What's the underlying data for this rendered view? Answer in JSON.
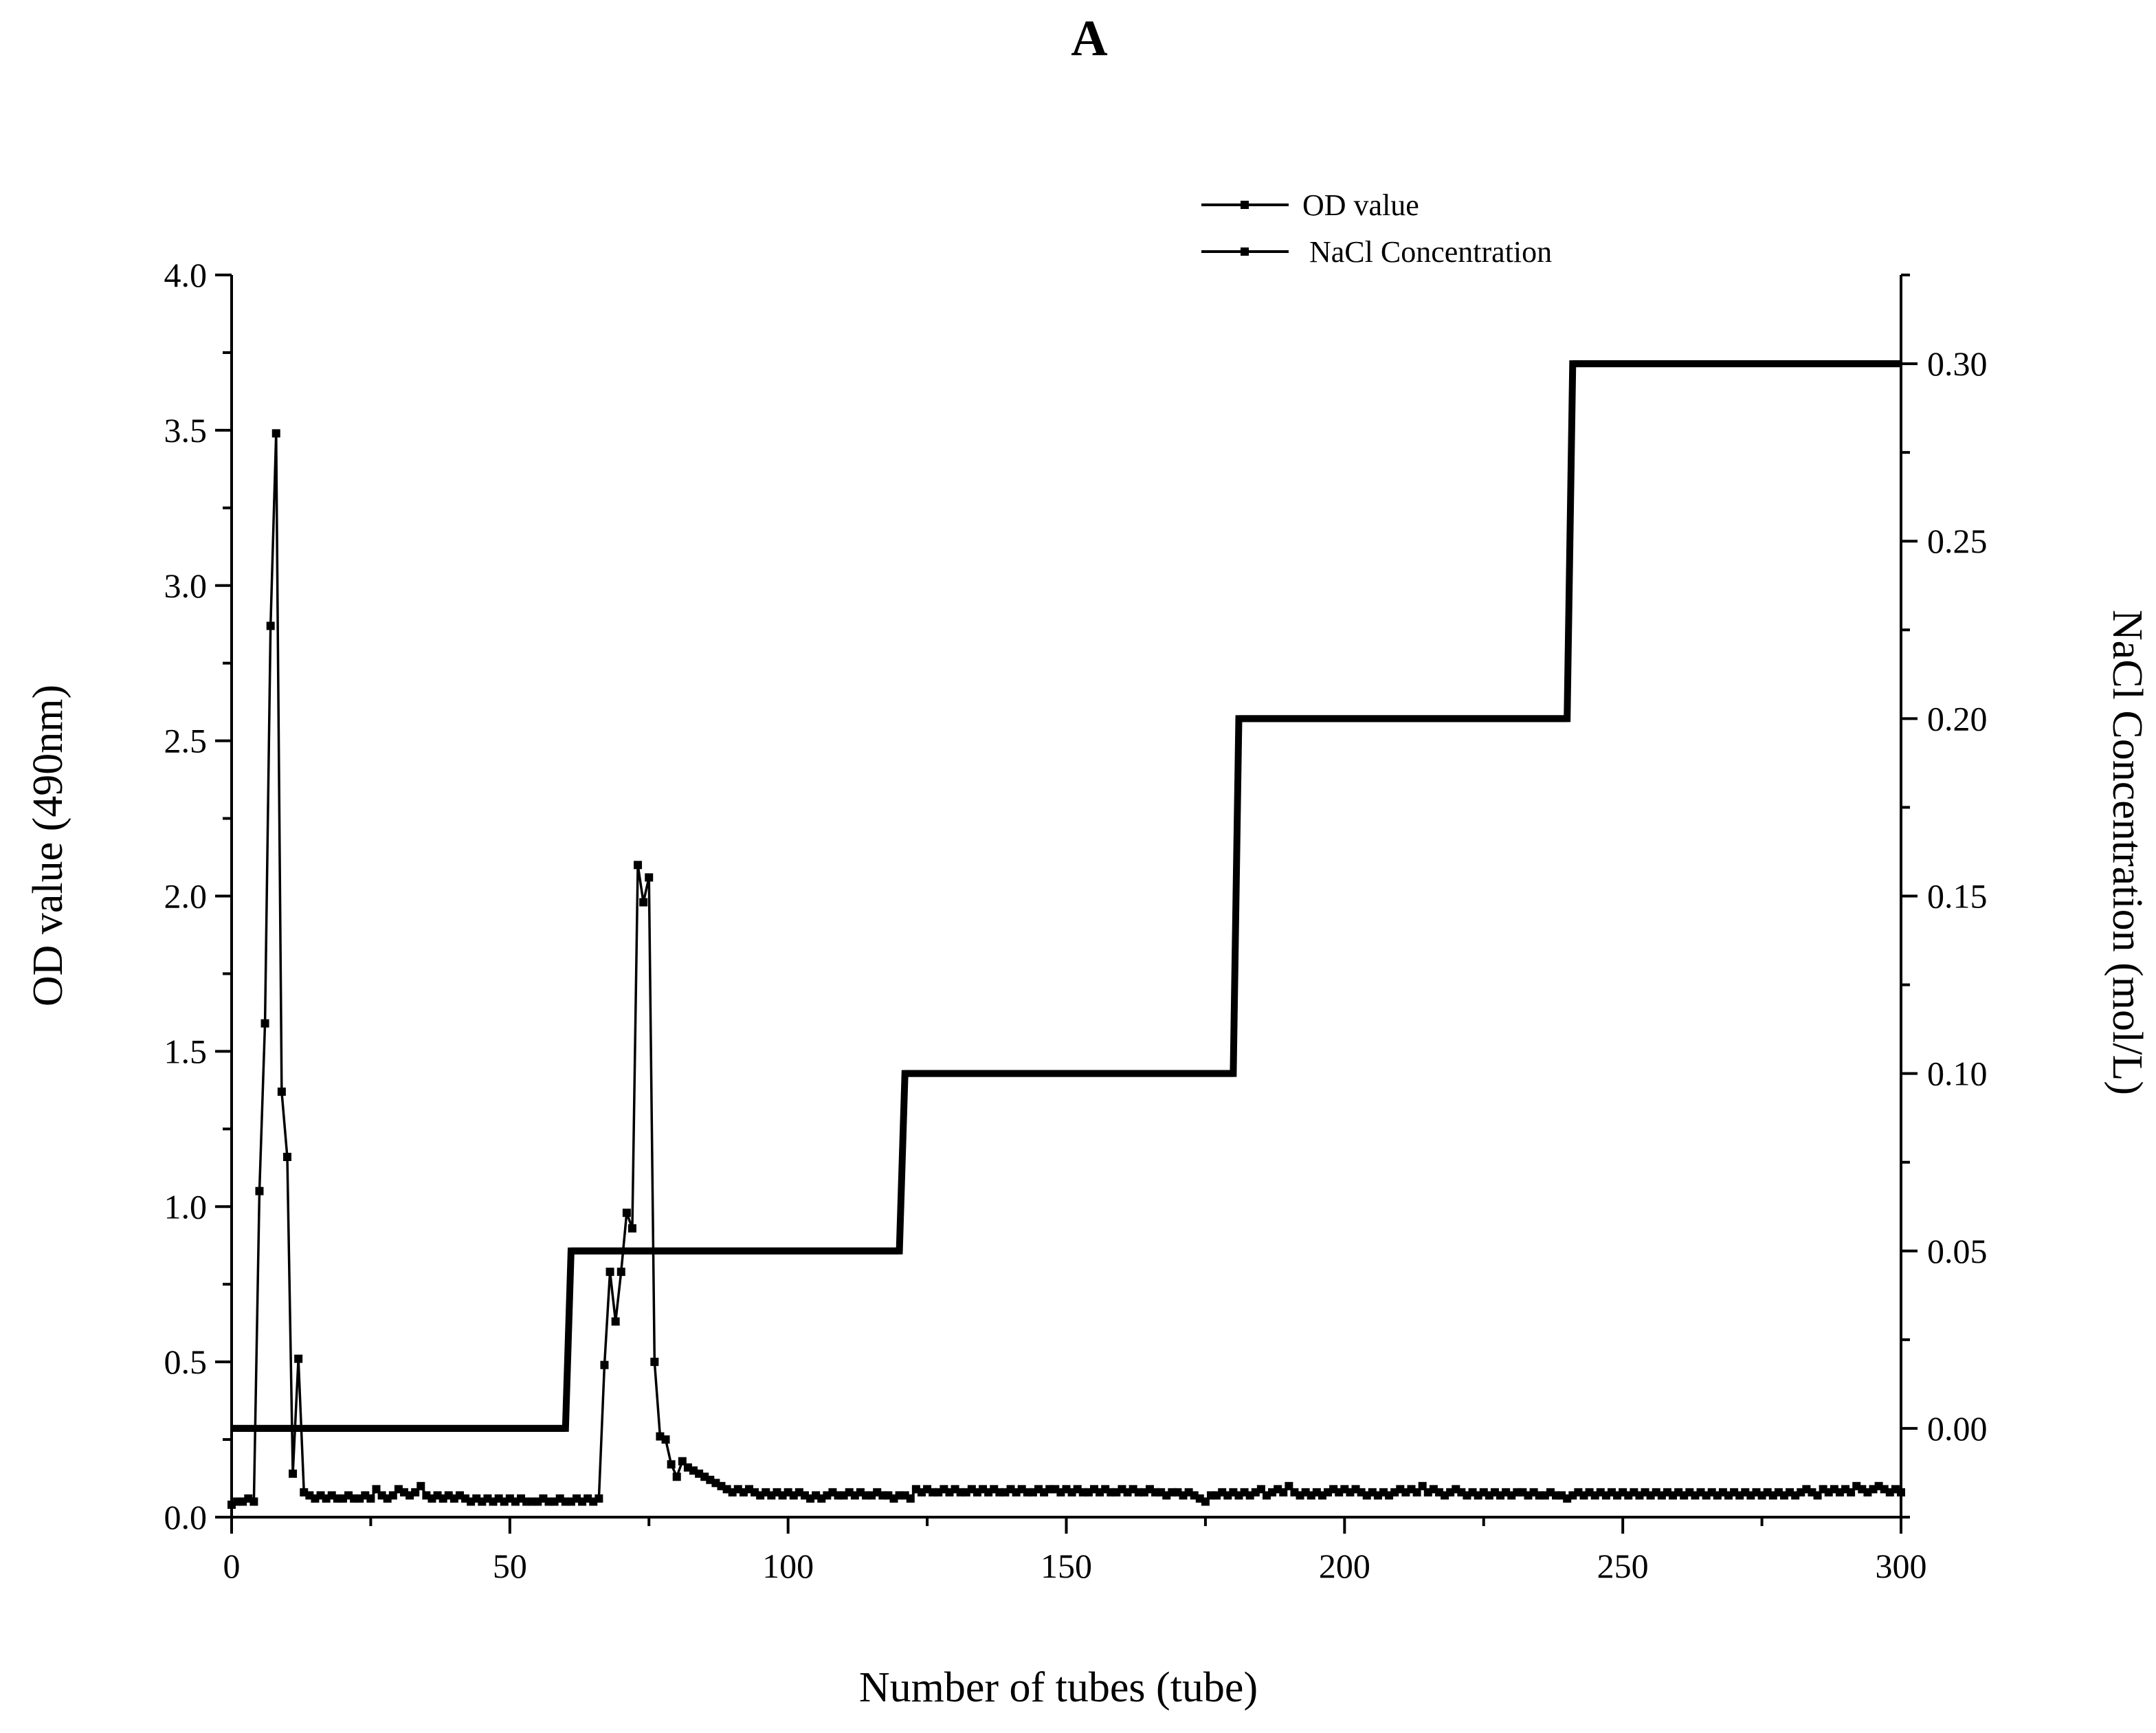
{
  "chart_data": {
    "type": "line",
    "title": "A",
    "xlabel": "Number of tubes (tube)",
    "ylabel": "OD value (490nm)",
    "y2label": "NaCl Concentration (mol/L)",
    "xlim": [
      0,
      300
    ],
    "ylim": [
      0,
      4.0
    ],
    "y2lim": [
      -0.025,
      0.325
    ],
    "grid": false,
    "legend_position": "top-center",
    "x_ticks": [
      "0",
      "50",
      "100",
      "150",
      "200",
      "250",
      "300"
    ],
    "y_ticks": [
      "0.0",
      "0.5",
      "1.0",
      "1.5",
      "2.0",
      "2.5",
      "3.0",
      "3.5",
      "4.0"
    ],
    "y2_ticks": [
      "0.00",
      "0.05",
      "0.10",
      "0.15",
      "0.20",
      "0.25",
      "0.30"
    ],
    "series": [
      {
        "name": "OD value",
        "axis": "left",
        "color": "#000000",
        "points": [
          [
            0,
            0.04
          ],
          [
            1,
            0.05
          ],
          [
            2,
            0.05
          ],
          [
            3,
            0.06
          ],
          [
            4,
            0.05
          ],
          [
            5,
            1.05
          ],
          [
            6,
            1.59
          ],
          [
            7,
            2.87
          ],
          [
            8,
            3.49
          ],
          [
            9,
            1.37
          ],
          [
            10,
            1.16
          ],
          [
            11,
            0.14
          ],
          [
            12,
            0.51
          ],
          [
            13,
            0.08
          ],
          [
            14,
            0.07
          ],
          [
            15,
            0.06
          ],
          [
            16,
            0.07
          ],
          [
            17,
            0.06
          ],
          [
            18,
            0.07
          ],
          [
            19,
            0.06
          ],
          [
            20,
            0.06
          ],
          [
            21,
            0.07
          ],
          [
            22,
            0.06
          ],
          [
            23,
            0.06
          ],
          [
            24,
            0.07
          ],
          [
            25,
            0.06
          ],
          [
            26,
            0.09
          ],
          [
            27,
            0.07
          ],
          [
            28,
            0.06
          ],
          [
            29,
            0.07
          ],
          [
            30,
            0.09
          ],
          [
            31,
            0.08
          ],
          [
            32,
            0.07
          ],
          [
            33,
            0.08
          ],
          [
            34,
            0.1
          ],
          [
            35,
            0.07
          ],
          [
            36,
            0.06
          ],
          [
            37,
            0.07
          ],
          [
            38,
            0.06
          ],
          [
            39,
            0.07
          ],
          [
            40,
            0.06
          ],
          [
            41,
            0.07
          ],
          [
            42,
            0.06
          ],
          [
            43,
            0.05
          ],
          [
            44,
            0.06
          ],
          [
            45,
            0.05
          ],
          [
            46,
            0.06
          ],
          [
            47,
            0.05
          ],
          [
            48,
            0.06
          ],
          [
            49,
            0.05
          ],
          [
            50,
            0.06
          ],
          [
            51,
            0.05
          ],
          [
            52,
            0.06
          ],
          [
            53,
            0.05
          ],
          [
            54,
            0.05
          ],
          [
            55,
            0.05
          ],
          [
            56,
            0.06
          ],
          [
            57,
            0.05
          ],
          [
            58,
            0.05
          ],
          [
            59,
            0.06
          ],
          [
            60,
            0.05
          ],
          [
            61,
            0.05
          ],
          [
            62,
            0.06
          ],
          [
            63,
            0.05
          ],
          [
            64,
            0.06
          ],
          [
            65,
            0.05
          ],
          [
            66,
            0.06
          ],
          [
            67,
            0.49
          ],
          [
            68,
            0.79
          ],
          [
            69,
            0.63
          ],
          [
            70,
            0.79
          ],
          [
            71,
            0.98
          ],
          [
            72,
            0.93
          ],
          [
            73,
            2.1
          ],
          [
            74,
            1.98
          ],
          [
            75,
            2.06
          ],
          [
            76,
            0.5
          ],
          [
            77,
            0.26
          ],
          [
            78,
            0.25
          ],
          [
            79,
            0.17
          ],
          [
            80,
            0.13
          ],
          [
            81,
            0.18
          ],
          [
            82,
            0.16
          ],
          [
            83,
            0.15
          ],
          [
            84,
            0.14
          ],
          [
            85,
            0.13
          ],
          [
            86,
            0.12
          ],
          [
            87,
            0.11
          ],
          [
            88,
            0.1
          ],
          [
            89,
            0.09
          ],
          [
            90,
            0.08
          ],
          [
            91,
            0.09
          ],
          [
            92,
            0.08
          ],
          [
            93,
            0.09
          ],
          [
            94,
            0.08
          ],
          [
            95,
            0.07
          ],
          [
            96,
            0.08
          ],
          [
            97,
            0.07
          ],
          [
            98,
            0.08
          ],
          [
            99,
            0.07
          ],
          [
            100,
            0.08
          ],
          [
            101,
            0.07
          ],
          [
            102,
            0.08
          ],
          [
            103,
            0.07
          ],
          [
            104,
            0.06
          ],
          [
            105,
            0.07
          ],
          [
            106,
            0.06
          ],
          [
            107,
            0.07
          ],
          [
            108,
            0.08
          ],
          [
            109,
            0.07
          ],
          [
            110,
            0.07
          ],
          [
            111,
            0.08
          ],
          [
            112,
            0.07
          ],
          [
            113,
            0.08
          ],
          [
            114,
            0.07
          ],
          [
            115,
            0.07
          ],
          [
            116,
            0.08
          ],
          [
            117,
            0.07
          ],
          [
            118,
            0.07
          ],
          [
            119,
            0.06
          ],
          [
            120,
            0.07
          ],
          [
            121,
            0.07
          ],
          [
            122,
            0.06
          ],
          [
            123,
            0.09
          ],
          [
            124,
            0.08
          ],
          [
            125,
            0.09
          ],
          [
            126,
            0.08
          ],
          [
            127,
            0.08
          ],
          [
            128,
            0.09
          ],
          [
            129,
            0.08
          ],
          [
            130,
            0.09
          ],
          [
            131,
            0.08
          ],
          [
            132,
            0.08
          ],
          [
            133,
            0.09
          ],
          [
            134,
            0.08
          ],
          [
            135,
            0.09
          ],
          [
            136,
            0.08
          ],
          [
            137,
            0.09
          ],
          [
            138,
            0.08
          ],
          [
            139,
            0.08
          ],
          [
            140,
            0.09
          ],
          [
            141,
            0.08
          ],
          [
            142,
            0.09
          ],
          [
            143,
            0.08
          ],
          [
            144,
            0.08
          ],
          [
            145,
            0.09
          ],
          [
            146,
            0.08
          ],
          [
            147,
            0.09
          ],
          [
            148,
            0.09
          ],
          [
            149,
            0.08
          ],
          [
            150,
            0.09
          ],
          [
            151,
            0.08
          ],
          [
            152,
            0.09
          ],
          [
            153,
            0.08
          ],
          [
            154,
            0.08
          ],
          [
            155,
            0.09
          ],
          [
            156,
            0.08
          ],
          [
            157,
            0.09
          ],
          [
            158,
            0.08
          ],
          [
            159,
            0.08
          ],
          [
            160,
            0.09
          ],
          [
            161,
            0.08
          ],
          [
            162,
            0.09
          ],
          [
            163,
            0.08
          ],
          [
            164,
            0.08
          ],
          [
            165,
            0.09
          ],
          [
            166,
            0.08
          ],
          [
            167,
            0.08
          ],
          [
            168,
            0.07
          ],
          [
            169,
            0.08
          ],
          [
            170,
            0.08
          ],
          [
            171,
            0.07
          ],
          [
            172,
            0.08
          ],
          [
            173,
            0.07
          ],
          [
            174,
            0.06
          ],
          [
            175,
            0.05
          ],
          [
            176,
            0.07
          ],
          [
            177,
            0.07
          ],
          [
            178,
            0.08
          ],
          [
            179,
            0.07
          ],
          [
            180,
            0.08
          ],
          [
            181,
            0.07
          ],
          [
            182,
            0.08
          ],
          [
            183,
            0.07
          ],
          [
            184,
            0.08
          ],
          [
            185,
            0.09
          ],
          [
            186,
            0.07
          ],
          [
            187,
            0.08
          ],
          [
            188,
            0.09
          ],
          [
            189,
            0.08
          ],
          [
            190,
            0.1
          ],
          [
            191,
            0.08
          ],
          [
            192,
            0.07
          ],
          [
            193,
            0.08
          ],
          [
            194,
            0.07
          ],
          [
            195,
            0.08
          ],
          [
            196,
            0.07
          ],
          [
            197,
            0.08
          ],
          [
            198,
            0.09
          ],
          [
            199,
            0.08
          ],
          [
            200,
            0.09
          ],
          [
            201,
            0.08
          ],
          [
            202,
            0.09
          ],
          [
            203,
            0.08
          ],
          [
            204,
            0.07
          ],
          [
            205,
            0.08
          ],
          [
            206,
            0.07
          ],
          [
            207,
            0.08
          ],
          [
            208,
            0.07
          ],
          [
            209,
            0.08
          ],
          [
            210,
            0.09
          ],
          [
            211,
            0.08
          ],
          [
            212,
            0.09
          ],
          [
            213,
            0.08
          ],
          [
            214,
            0.1
          ],
          [
            215,
            0.08
          ],
          [
            216,
            0.09
          ],
          [
            217,
            0.08
          ],
          [
            218,
            0.07
          ],
          [
            219,
            0.08
          ],
          [
            220,
            0.09
          ],
          [
            221,
            0.08
          ],
          [
            222,
            0.07
          ],
          [
            223,
            0.08
          ],
          [
            224,
            0.07
          ],
          [
            225,
            0.08
          ],
          [
            226,
            0.07
          ],
          [
            227,
            0.08
          ],
          [
            228,
            0.07
          ],
          [
            229,
            0.08
          ],
          [
            230,
            0.07
          ],
          [
            231,
            0.08
          ],
          [
            232,
            0.08
          ],
          [
            233,
            0.07
          ],
          [
            234,
            0.08
          ],
          [
            235,
            0.07
          ],
          [
            236,
            0.07
          ],
          [
            237,
            0.08
          ],
          [
            238,
            0.07
          ],
          [
            239,
            0.07
          ],
          [
            240,
            0.06
          ],
          [
            241,
            0.07
          ],
          [
            242,
            0.08
          ],
          [
            243,
            0.07
          ],
          [
            244,
            0.08
          ],
          [
            245,
            0.07
          ],
          [
            246,
            0.08
          ],
          [
            247,
            0.07
          ],
          [
            248,
            0.08
          ],
          [
            249,
            0.07
          ],
          [
            250,
            0.08
          ],
          [
            251,
            0.07
          ],
          [
            252,
            0.08
          ],
          [
            253,
            0.07
          ],
          [
            254,
            0.08
          ],
          [
            255,
            0.07
          ],
          [
            256,
            0.08
          ],
          [
            257,
            0.07
          ],
          [
            258,
            0.08
          ],
          [
            259,
            0.07
          ],
          [
            260,
            0.08
          ],
          [
            261,
            0.07
          ],
          [
            262,
            0.08
          ],
          [
            263,
            0.07
          ],
          [
            264,
            0.08
          ],
          [
            265,
            0.07
          ],
          [
            266,
            0.08
          ],
          [
            267,
            0.07
          ],
          [
            268,
            0.08
          ],
          [
            269,
            0.07
          ],
          [
            270,
            0.08
          ],
          [
            271,
            0.07
          ],
          [
            272,
            0.08
          ],
          [
            273,
            0.07
          ],
          [
            274,
            0.08
          ],
          [
            275,
            0.07
          ],
          [
            276,
            0.08
          ],
          [
            277,
            0.07
          ],
          [
            278,
            0.08
          ],
          [
            279,
            0.07
          ],
          [
            280,
            0.08
          ],
          [
            281,
            0.07
          ],
          [
            282,
            0.08
          ],
          [
            283,
            0.09
          ],
          [
            284,
            0.08
          ],
          [
            285,
            0.07
          ],
          [
            286,
            0.09
          ],
          [
            287,
            0.08
          ],
          [
            288,
            0.09
          ],
          [
            289,
            0.08
          ],
          [
            290,
            0.09
          ],
          [
            291,
            0.08
          ],
          [
            292,
            0.1
          ],
          [
            293,
            0.09
          ],
          [
            294,
            0.08
          ],
          [
            295,
            0.09
          ],
          [
            296,
            0.1
          ],
          [
            297,
            0.09
          ],
          [
            298,
            0.08
          ],
          [
            299,
            0.09
          ],
          [
            300,
            0.08
          ]
        ]
      },
      {
        "name": "NaCl Concentration",
        "axis": "right",
        "color": "#000000",
        "points": [
          [
            0,
            0.0
          ],
          [
            60,
            0.0
          ],
          [
            61,
            0.05
          ],
          [
            120,
            0.05
          ],
          [
            121,
            0.1
          ],
          [
            180,
            0.1
          ],
          [
            181,
            0.2
          ],
          [
            240,
            0.2
          ],
          [
            241,
            0.3
          ],
          [
            300,
            0.3
          ]
        ]
      }
    ]
  }
}
